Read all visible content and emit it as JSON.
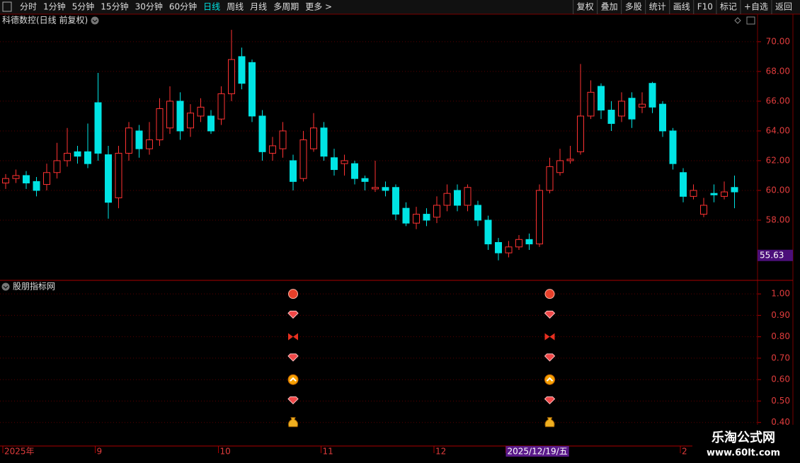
{
  "toolbar": {
    "left": [
      "分时",
      "1分钟",
      "5分钟",
      "15分钟",
      "30分钟",
      "60分钟",
      "日线",
      "周线",
      "月线",
      "多周期",
      "更多 >"
    ],
    "active_index": 6,
    "right": [
      "复权",
      "叠加",
      "多股",
      "统计",
      "画线",
      "F10",
      "标记",
      "+自选",
      "返回"
    ]
  },
  "chart_data": {
    "type": "candlestick",
    "title": "科德数控(日线 前复权)",
    "categories": [
      "2025年",
      null,
      null,
      null,
      null,
      null,
      null,
      null,
      null,
      "9",
      null,
      null,
      null,
      null,
      null,
      null,
      null,
      null,
      null,
      null,
      null,
      "10",
      null,
      null,
      null,
      null,
      null,
      null,
      null,
      null,
      null,
      "11",
      null,
      null,
      null,
      null,
      null,
      null,
      null,
      null,
      null,
      null,
      "12",
      null,
      null,
      null,
      null,
      null,
      null,
      "2025/12/19/五",
      null,
      null,
      null,
      null,
      null,
      null,
      null,
      null,
      null,
      null,
      null,
      null,
      null,
      null,
      null,
      null,
      "2",
      null,
      null,
      null,
      null,
      null
    ],
    "selected_category": 49,
    "open": [
      60.5,
      60.8,
      61.0,
      60.6,
      60.4,
      61.2,
      62.0,
      62.6,
      62.6,
      65.9,
      62.4,
      59.5,
      62.5,
      64.0,
      62.8,
      63.4,
      64.2,
      66.0,
      64.2,
      65.0,
      65.0,
      64.8,
      66.5,
      69.0,
      68.6,
      65.0,
      62.5,
      62.8,
      62.0,
      60.8,
      62.8,
      64.2,
      62.2,
      61.8,
      61.8,
      60.8,
      60.1,
      60.2,
      60.2,
      58.8,
      57.8,
      58.4,
      58.2,
      59.0,
      60.0,
      59.0,
      59.0,
      58.0,
      56.5,
      55.8,
      56.2,
      56.7,
      56.4,
      60.0,
      61.2,
      62.0,
      62.6,
      65.0,
      67.0,
      65.4,
      65.0,
      66.2,
      65.6,
      67.2,
      65.8,
      64.0,
      61.2,
      59.6,
      58.4,
      59.8,
      59.6,
      60.2
    ],
    "high": [
      61.1,
      61.4,
      61.3,
      60.9,
      61.8,
      63.2,
      64.2,
      63.0,
      64.5,
      67.9,
      63.0,
      63.0,
      64.6,
      64.4,
      64.6,
      66.2,
      67.0,
      66.6,
      65.8,
      66.2,
      65.4,
      67.0,
      70.8,
      69.6,
      68.8,
      65.4,
      63.6,
      64.6,
      62.4,
      64.0,
      65.2,
      64.6,
      62.8,
      62.4,
      62.0,
      61.0,
      62.0,
      60.6,
      60.4,
      59.2,
      58.9,
      58.8,
      59.6,
      60.4,
      60.4,
      60.4,
      59.3,
      58.3,
      56.8,
      56.6,
      57.0,
      57.1,
      60.4,
      62.2,
      62.8,
      63.0,
      68.5,
      67.4,
      67.2,
      66.0,
      66.6,
      66.6,
      66.6,
      67.3,
      66.0,
      64.2,
      61.5,
      60.4,
      59.5,
      60.4,
      60.6,
      61.0
    ],
    "low": [
      60.1,
      60.5,
      60.1,
      59.6,
      60.0,
      60.8,
      61.6,
      61.8,
      61.5,
      62.0,
      58.1,
      58.8,
      62.0,
      62.2,
      62.4,
      63.0,
      63.8,
      63.4,
      63.6,
      64.6,
      63.8,
      64.4,
      66.0,
      66.8,
      64.6,
      62.0,
      62.0,
      62.2,
      60.0,
      60.6,
      62.6,
      62.0,
      61.0,
      61.0,
      60.4,
      60.0,
      59.9,
      59.6,
      58.0,
      57.6,
      57.4,
      57.6,
      57.8,
      58.6,
      58.6,
      58.6,
      57.6,
      56.0,
      55.3,
      55.5,
      56.0,
      56.0,
      56.2,
      59.8,
      61.0,
      61.8,
      62.4,
      64.8,
      64.8,
      64.0,
      64.6,
      64.2,
      65.2,
      65.2,
      63.6,
      61.4,
      59.2,
      59.4,
      58.2,
      59.2,
      59.4,
      58.8
    ],
    "close": [
      60.8,
      61.0,
      60.5,
      60.0,
      61.2,
      62.0,
      62.5,
      62.3,
      61.8,
      62.5,
      59.2,
      62.5,
      64.2,
      62.8,
      63.4,
      65.5,
      66.0,
      64.0,
      65.2,
      65.6,
      64.0,
      66.5,
      68.8,
      67.2,
      65.0,
      62.6,
      63.0,
      64.0,
      60.6,
      63.4,
      64.2,
      62.3,
      61.4,
      62.0,
      60.8,
      60.6,
      60.2,
      60.0,
      58.4,
      57.8,
      58.4,
      58.0,
      59.0,
      59.8,
      59.0,
      60.2,
      58.0,
      56.4,
      55.8,
      56.2,
      56.7,
      56.4,
      60.0,
      61.6,
      62.0,
      62.1,
      65.0,
      66.6,
      65.4,
      64.5,
      66.0,
      64.8,
      65.8,
      65.6,
      64.0,
      61.8,
      59.6,
      60.0,
      59.0,
      59.7,
      59.9,
      59.9
    ],
    "up_color": "#ff3232",
    "down_color": "#00e4e4",
    "ylim": [
      54.0,
      70.9
    ],
    "yticks": [
      {
        "value": 58,
        "label": "58.00"
      },
      {
        "value": 60,
        "label": "60.00"
      },
      {
        "value": 62,
        "label": "62.00"
      },
      {
        "value": 64,
        "label": "64.00"
      },
      {
        "value": 66,
        "label": "66.00"
      },
      {
        "value": 68,
        "label": "68.00"
      },
      {
        "value": 70,
        "label": "70.00"
      }
    ],
    "price_marker": {
      "value": 55.63,
      "label": "55.63"
    },
    "grid": true
  },
  "indicator": {
    "title": "股朋指标网",
    "ylim": [
      0.29,
      1.06
    ],
    "yticks": [
      {
        "value": 1,
        "label": "1.00"
      },
      {
        "value": 0.9,
        "label": "0.90"
      },
      {
        "value": 0.8,
        "label": "0.80"
      },
      {
        "value": 0.7,
        "label": "0.70"
      },
      {
        "value": 0.6,
        "label": "0.60"
      },
      {
        "value": 0.5,
        "label": "0.50"
      },
      {
        "value": 0.4,
        "label": "0.40"
      }
    ],
    "icons": [
      "coin",
      "diamond",
      "butterfly",
      "diamond",
      "arrow",
      "diamond",
      "bag"
    ],
    "signals": [
      {
        "at": 28,
        "levels": [
          1,
          0.9,
          0.8,
          0.7,
          0.6,
          0.5,
          0.4
        ]
      },
      {
        "at": 53,
        "levels": [
          1,
          0.9,
          0.8,
          0.7,
          0.6,
          0.5,
          0.4
        ]
      }
    ]
  },
  "watermark": {
    "title": "乐淘公式网",
    "url": "www.60lt.com"
  }
}
